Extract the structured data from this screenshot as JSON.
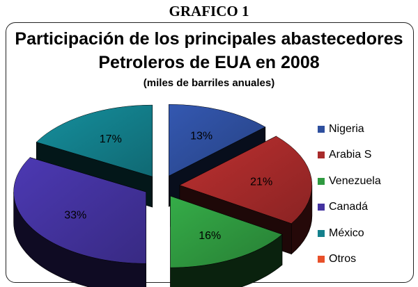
{
  "header": {
    "label": "GRAFICO 1"
  },
  "chart_data": {
    "type": "pie",
    "title": "Participación de los principales abastecedores Petroleros de EUA en 2008",
    "title_lines": [
      "Participación de los principales abastecedores",
      "Petroleros de EUA en 2008"
    ],
    "subtitle": "(miles de barriles anuales)",
    "categories": [
      "Nigeria",
      "Arabia S",
      "Venezuela",
      "Canadá",
      "México",
      "Otros"
    ],
    "values": [
      13,
      21,
      16,
      33,
      17,
      0
    ],
    "data_labels": [
      "13%",
      "21%",
      "16%",
      "33%",
      "17%",
      ""
    ],
    "colors": [
      "#2e4f9e",
      "#a82b2b",
      "#2f9a40",
      "#4433a0",
      "#13808c",
      "#e8502a"
    ],
    "legend_position": "right",
    "style": "3d-exploded"
  }
}
